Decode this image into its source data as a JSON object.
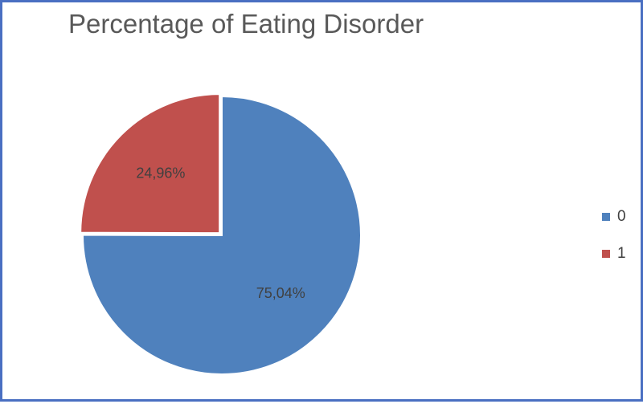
{
  "chart_data": {
    "type": "pie",
    "title": "Percentage of Eating Disorder",
    "categories": [
      "0",
      "1"
    ],
    "values": [
      75.04,
      24.96
    ],
    "data_labels": [
      "75,04%",
      "24,96%"
    ],
    "colors": [
      "#4f81bd",
      "#c0504d"
    ],
    "slice_order": "clockwise-from-top",
    "exploded_slice": "1",
    "legend_position": "right"
  },
  "frame": {
    "border_color": "#4a6fc2"
  }
}
